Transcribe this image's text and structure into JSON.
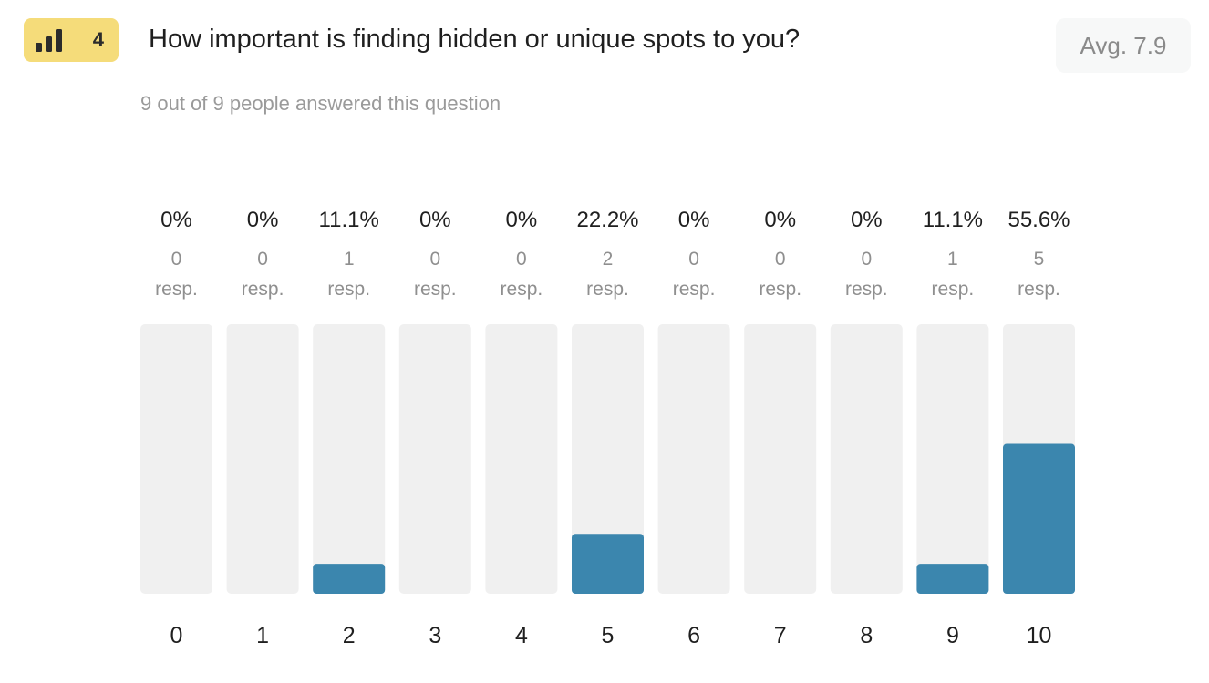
{
  "question": {
    "number": "4",
    "title": "How important is finding hidden or unique spots to you?",
    "average": "Avg. 7.9",
    "answered_text": "9 out of 9 people answered this question",
    "badge_icon": "bar-chart-icon"
  },
  "colors": {
    "badge_bg": "#f5dc7a",
    "bar_fill": "#3b86ae",
    "bar_track": "#f0f0f0"
  },
  "chart_data": {
    "type": "bar",
    "categories": [
      "0",
      "1",
      "2",
      "3",
      "4",
      "5",
      "6",
      "7",
      "8",
      "9",
      "10"
    ],
    "values": [
      0,
      0,
      1,
      0,
      0,
      2,
      0,
      0,
      0,
      1,
      5
    ],
    "percent_labels": [
      "0%",
      "0%",
      "11.1%",
      "0%",
      "0%",
      "22.2%",
      "0%",
      "0%",
      "0%",
      "11.1%",
      "55.6%"
    ],
    "resp_counts": [
      "0",
      "0",
      "1",
      "0",
      "0",
      "2",
      "0",
      "0",
      "0",
      "1",
      "5"
    ],
    "resp_unit": "resp.",
    "ylim": [
      0,
      9
    ]
  }
}
